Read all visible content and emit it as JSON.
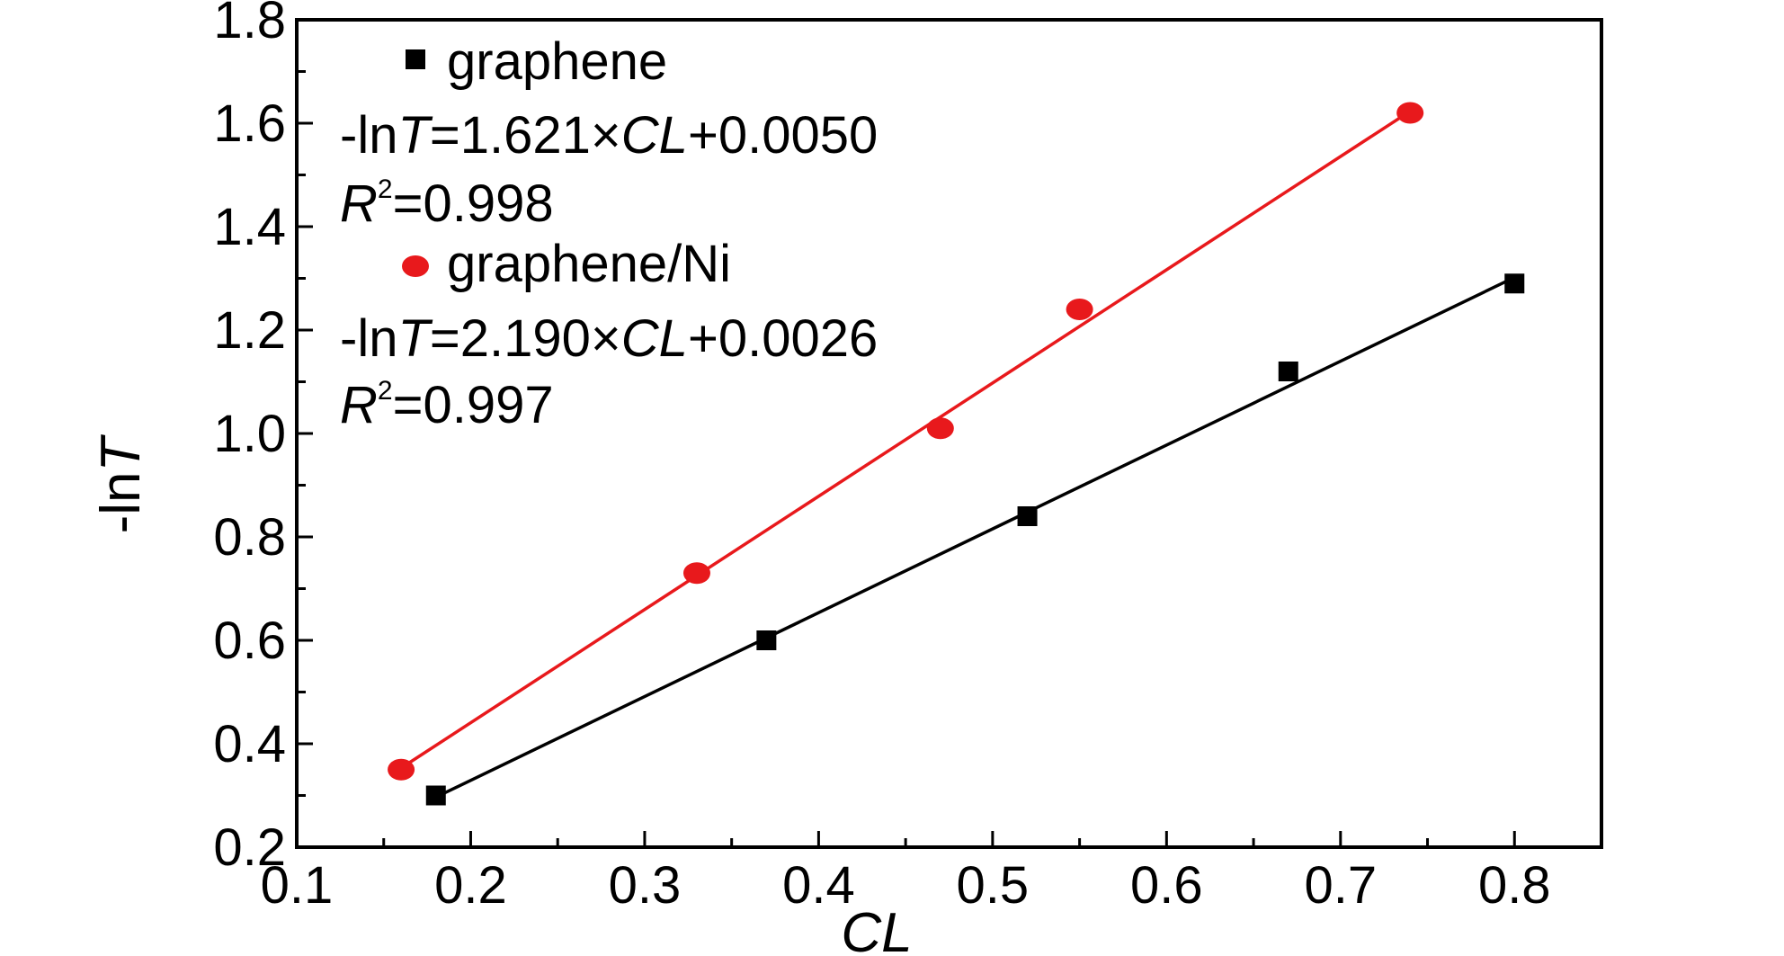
{
  "chart_data": {
    "type": "scatter",
    "xlabel": "CL",
    "ylabel_prefix": "-ln",
    "ylabel_var": "T",
    "xlim": [
      0.1,
      0.85
    ],
    "ylim": [
      0.2,
      1.8
    ],
    "xticks": [
      "0.1",
      "0.2",
      "0.3",
      "0.4",
      "0.5",
      "0.6",
      "0.7",
      "0.8"
    ],
    "yticks": [
      "0.2",
      "0.4",
      "0.6",
      "0.8",
      "1.0",
      "1.2",
      "1.4",
      "1.6",
      "1.8"
    ],
    "grid": false,
    "legend_position": "top-left",
    "series": [
      {
        "name": "graphene",
        "marker": "square",
        "color": "#000000",
        "x": [
          0.18,
          0.37,
          0.52,
          0.67,
          0.8
        ],
        "y": [
          0.3,
          0.6,
          0.84,
          1.12,
          1.29
        ],
        "fit": {
          "slope": 1.621,
          "intercept": 0.005
        },
        "equation": {
          "lhs": "-ln",
          "var": "T",
          "eq": "=1.621",
          "times": "×",
          "xvar": "CL",
          "rest": "+0.0050"
        },
        "r2_value": "=0.998"
      },
      {
        "name": "graphene/Ni",
        "marker": "circle",
        "color": "#e8191c",
        "x": [
          0.16,
          0.33,
          0.47,
          0.55,
          0.74
        ],
        "y": [
          0.35,
          0.73,
          1.01,
          1.24,
          1.62
        ],
        "fit": {
          "slope": 2.19,
          "intercept": 0.0026
        },
        "equation": {
          "lhs": "-ln",
          "var": "T",
          "eq": "=2.190",
          "times": "×",
          "xvar": "CL",
          "rest": "+0.0026"
        },
        "r2_value": "=0.997"
      }
    ],
    "r2_symbol": "R",
    "r2_sup": "2"
  }
}
